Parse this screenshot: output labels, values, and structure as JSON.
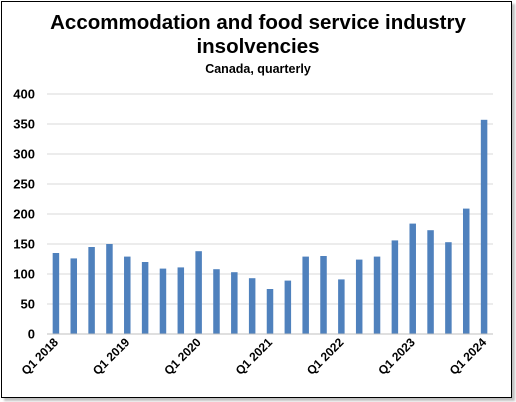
{
  "chart_data": {
    "type": "bar",
    "title": "Accommodation and food service industry insolvencies",
    "subtitle": "Canada, quarterly",
    "xlabel": "",
    "ylabel": "",
    "ylim": [
      0,
      400
    ],
    "yticks": [
      0,
      50,
      100,
      150,
      200,
      250,
      300,
      350,
      400
    ],
    "grid": true,
    "bar_color": "#4f81bd",
    "categories": [
      "Q1 2018",
      "Q2 2018",
      "Q3 2018",
      "Q4 2018",
      "Q1 2019",
      "Q2 2019",
      "Q3 2019",
      "Q4 2019",
      "Q1 2020",
      "Q2 2020",
      "Q3 2020",
      "Q4 2020",
      "Q1 2021",
      "Q2 2021",
      "Q3 2021",
      "Q4 2021",
      "Q1 2022",
      "Q2 2022",
      "Q3 2022",
      "Q4 2022",
      "Q1 2023",
      "Q2 2023",
      "Q3 2023",
      "Q4 2023",
      "Q1 2024"
    ],
    "x_tick_labels": [
      "Q1 2018",
      "Q1 2019",
      "Q1 2020",
      "Q1 2021",
      "Q1 2022",
      "Q1 2023",
      "Q1 2024"
    ],
    "values": [
      135,
      126,
      145,
      150,
      129,
      120,
      109,
      111,
      138,
      108,
      103,
      93,
      75,
      89,
      129,
      130,
      91,
      124,
      129,
      156,
      184,
      173,
      153,
      209,
      357
    ]
  }
}
